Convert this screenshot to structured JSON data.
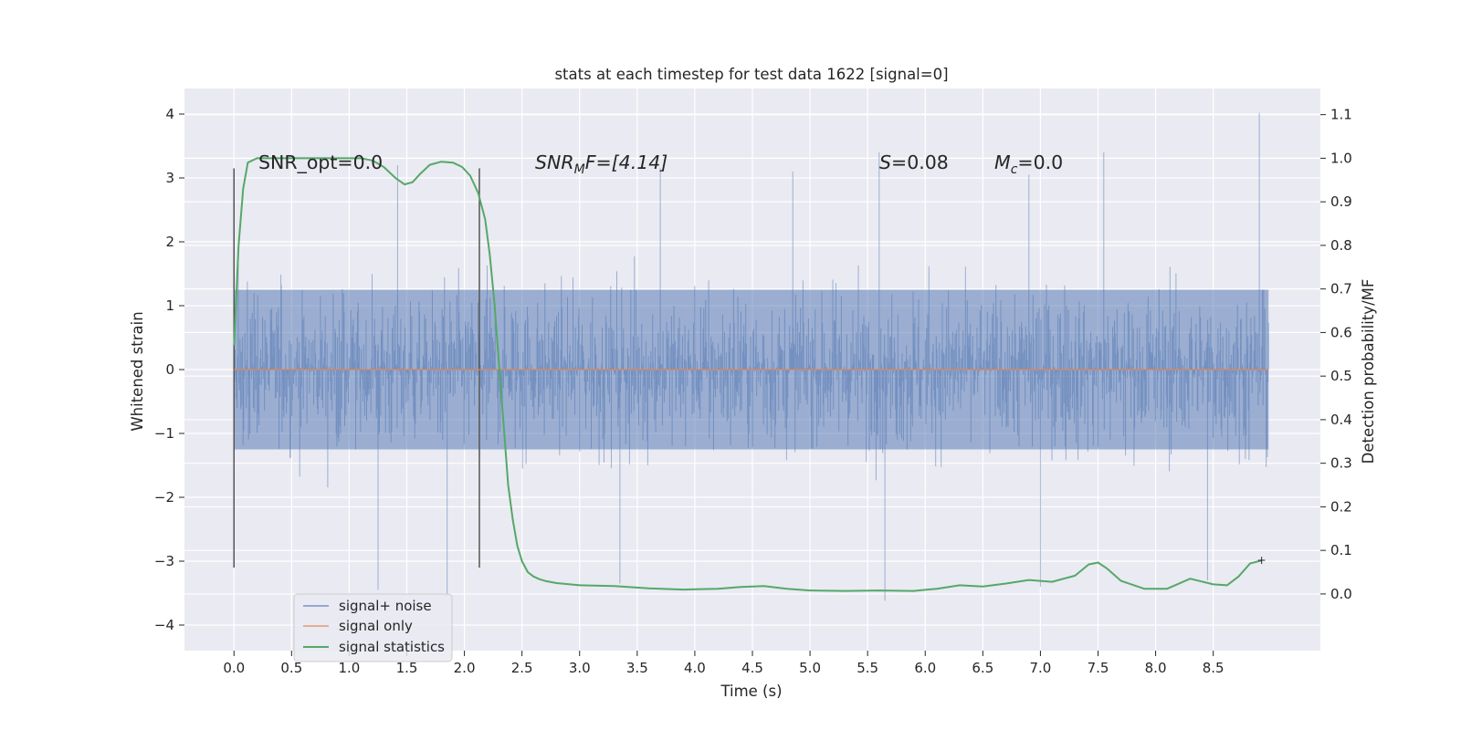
{
  "chart_data": {
    "type": "line",
    "title": "stats at each timestep for test data 1622 [signal=0]",
    "xlabel": "Time (s)",
    "ylabel": "Whitened strain",
    "y2label": "Detection probability/MF",
    "xlim": [
      -0.43,
      9.43
    ],
    "ylim": [
      -4.4,
      4.4
    ],
    "y2lim": [
      -0.13,
      1.16
    ],
    "xticks": [
      0.0,
      0.5,
      1.0,
      1.5,
      2.0,
      2.5,
      3.0,
      3.5,
      4.0,
      4.5,
      5.0,
      5.5,
      6.0,
      6.5,
      7.0,
      7.5,
      8.0,
      8.5
    ],
    "xtick_labels": [
      "0.0",
      "0.5",
      "1.0",
      "1.5",
      "2.0",
      "2.5",
      "3.0",
      "3.5",
      "4.0",
      "4.5",
      "5.0",
      "5.5",
      "6.0",
      "6.5",
      "7.0",
      "7.5",
      "8.0",
      "8.5"
    ],
    "yticks": [
      4,
      3,
      2,
      1,
      0,
      -1,
      -2,
      -3,
      -4
    ],
    "ytick_labels": [
      "4",
      "3",
      "2",
      "1",
      "0",
      "−1",
      "−2",
      "−3",
      "−4"
    ],
    "y2ticks": [
      1.1,
      1.0,
      0.9,
      0.8,
      0.7,
      0.6,
      0.5,
      0.4,
      0.3,
      0.2,
      0.1,
      0.0
    ],
    "y2tick_labels": [
      "1.1",
      "1.0",
      "0.9",
      "0.8",
      "0.7",
      "0.6",
      "0.5",
      "0.4",
      "0.3",
      "0.2",
      "0.1",
      "0.0"
    ],
    "annotations": {
      "snr_opt": "SNR_opt=0.0",
      "snr_mf_main": "SNR",
      "snr_mf_sub": "M",
      "snr_mf_tail": "F=[4.14]",
      "s_main": "S",
      "s_tail": "=0.08",
      "mc_main": "M",
      "mc_sub": "c",
      "mc_tail": "=0.0"
    },
    "vlines": {
      "x": [
        0.0,
        2.13
      ],
      "ymin": -3.1,
      "ymax": 3.15
    },
    "series": [
      {
        "name": "signal+ noise",
        "color": "#4c72b0",
        "kind": "noise",
        "t_start": 0.0,
        "t_end": 8.98,
        "band": 1.25,
        "peak_max": 4.02,
        "peak_min": -3.62,
        "peaks_up": [
          [
            1.42,
            3.2
          ],
          [
            3.7,
            3.15
          ],
          [
            5.6,
            3.4
          ],
          [
            7.55,
            3.4
          ],
          [
            8.9,
            4.02
          ],
          [
            4.85,
            3.1
          ],
          [
            6.9,
            3.05
          ]
        ],
        "peaks_down": [
          [
            1.25,
            -3.45
          ],
          [
            1.85,
            -3.55
          ],
          [
            3.35,
            -3.35
          ],
          [
            5.65,
            -3.62
          ],
          [
            7.0,
            -3.4
          ],
          [
            8.45,
            -3.3
          ]
        ]
      },
      {
        "name": "signal only",
        "color": "#dd8452",
        "x": [
          0.0,
          8.98
        ],
        "y": [
          0.0,
          0.0
        ]
      },
      {
        "name": "signal statistics",
        "color": "#55a868",
        "axis": "y2",
        "x": [
          0.0,
          0.04,
          0.08,
          0.12,
          0.2,
          0.35,
          0.6,
          0.9,
          1.1,
          1.2,
          1.3,
          1.4,
          1.48,
          1.55,
          1.62,
          1.7,
          1.8,
          1.9,
          1.98,
          2.05,
          2.12,
          2.18,
          2.22,
          2.26,
          2.3,
          2.34,
          2.38,
          2.42,
          2.46,
          2.5,
          2.55,
          2.6,
          2.65,
          2.7,
          2.8,
          3.0,
          3.3,
          3.6,
          3.9,
          4.2,
          4.4,
          4.6,
          4.8,
          5.0,
          5.3,
          5.6,
          5.9,
          6.1,
          6.3,
          6.5,
          6.7,
          6.9,
          7.1,
          7.3,
          7.42,
          7.5,
          7.58,
          7.7,
          7.9,
          8.1,
          8.3,
          8.5,
          8.62,
          8.72,
          8.82,
          8.92
        ],
        "y": [
          0.57,
          0.8,
          0.93,
          0.99,
          1.0,
          1.0,
          1.0,
          1.0,
          1.0,
          0.995,
          0.98,
          0.955,
          0.94,
          0.945,
          0.965,
          0.985,
          0.992,
          0.99,
          0.98,
          0.96,
          0.92,
          0.86,
          0.78,
          0.67,
          0.53,
          0.39,
          0.25,
          0.17,
          0.11,
          0.075,
          0.05,
          0.04,
          0.034,
          0.03,
          0.025,
          0.02,
          0.018,
          0.013,
          0.01,
          0.012,
          0.016,
          0.018,
          0.012,
          0.008,
          0.007,
          0.008,
          0.007,
          0.012,
          0.02,
          0.017,
          0.024,
          0.032,
          0.028,
          0.042,
          0.068,
          0.072,
          0.058,
          0.03,
          0.012,
          0.012,
          0.035,
          0.022,
          0.02,
          0.04,
          0.07,
          0.077
        ]
      }
    ],
    "legend": {
      "position": "lower-left",
      "entries": [
        "signal+ noise",
        "signal only",
        "signal statistics"
      ]
    }
  }
}
